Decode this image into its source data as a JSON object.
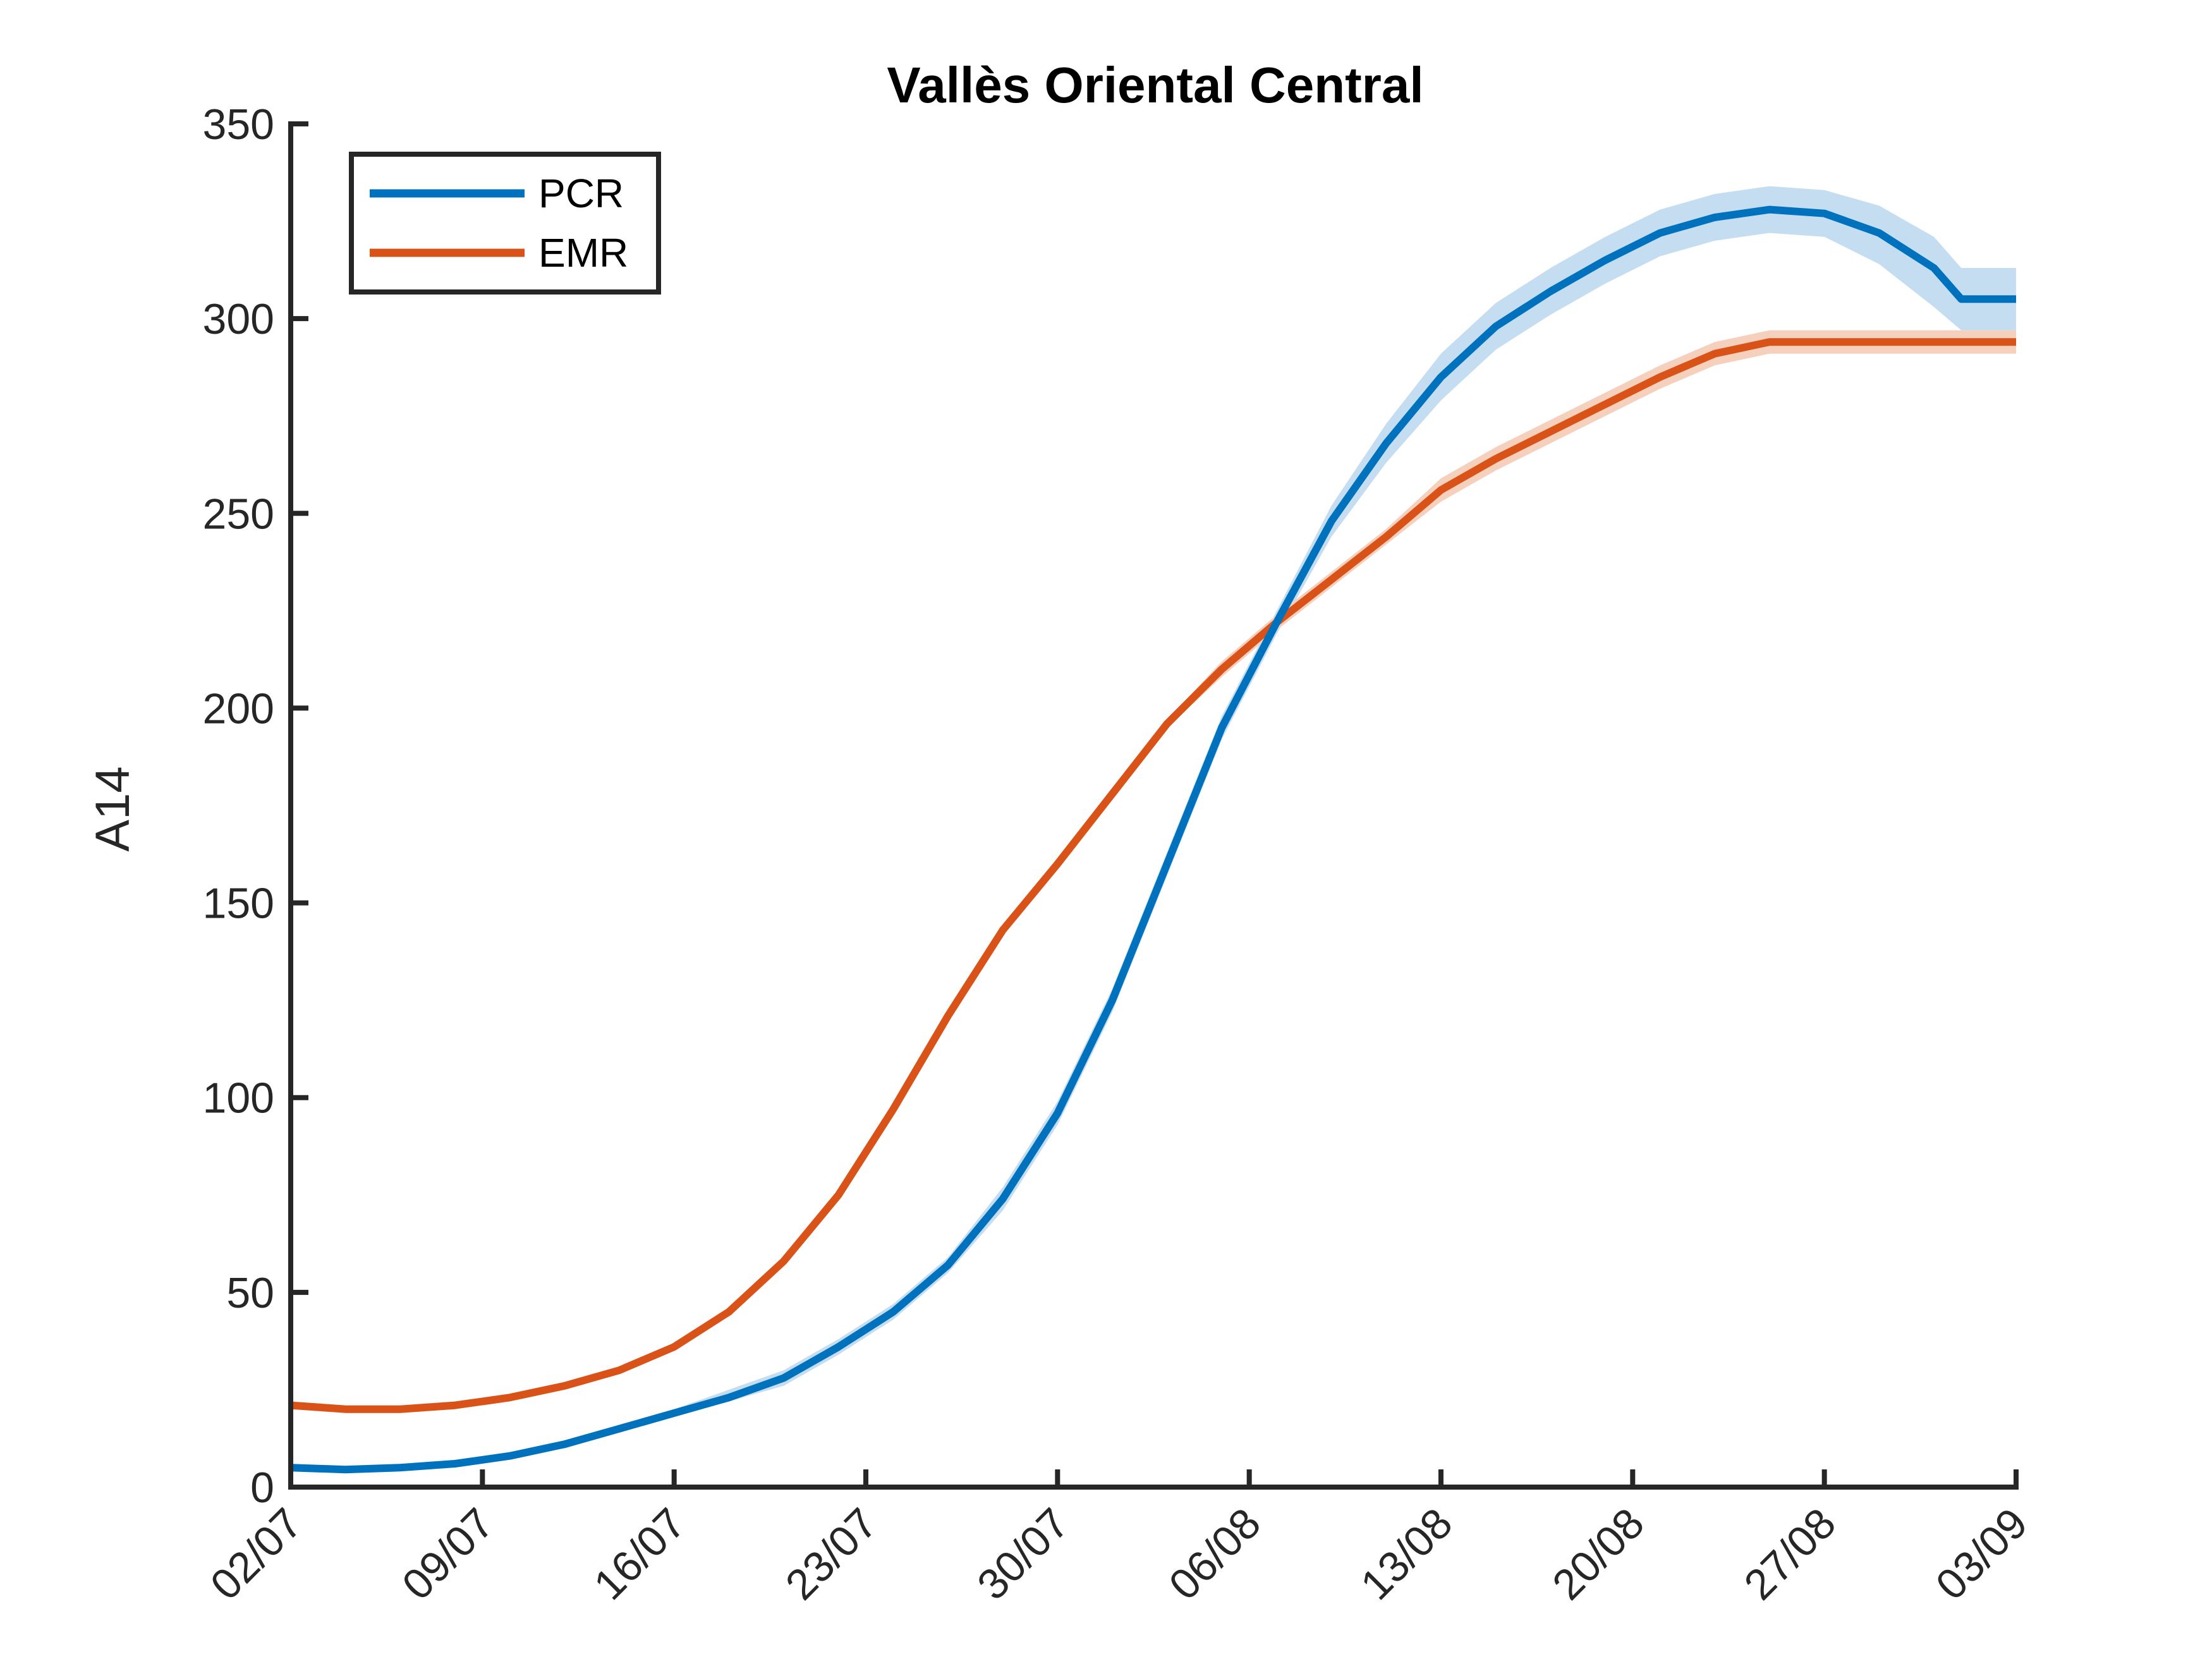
{
  "chart_data": {
    "type": "line",
    "title": "Vallès Oriental Central",
    "xlabel": "",
    "ylabel": "A14",
    "ylim": [
      0,
      350
    ],
    "yticks": [
      0,
      50,
      100,
      150,
      200,
      250,
      300,
      350
    ],
    "xlim": [
      "2020-07-02",
      "2020-09-03"
    ],
    "xtick_labels": [
      "02/07",
      "09/07",
      "16/07",
      "23/07",
      "30/07",
      "06/08",
      "13/08",
      "20/08",
      "27/08",
      "03/09"
    ],
    "x": [
      "2020-07-02",
      "2020-07-04",
      "2020-07-06",
      "2020-07-08",
      "2020-07-10",
      "2020-07-12",
      "2020-07-14",
      "2020-07-16",
      "2020-07-18",
      "2020-07-20",
      "2020-07-22",
      "2020-07-24",
      "2020-07-26",
      "2020-07-28",
      "2020-07-30",
      "2020-08-01",
      "2020-08-03",
      "2020-08-05",
      "2020-08-07",
      "2020-08-09",
      "2020-08-11",
      "2020-08-13",
      "2020-08-15",
      "2020-08-17",
      "2020-08-19",
      "2020-08-21",
      "2020-08-23",
      "2020-08-25",
      "2020-08-27",
      "2020-08-29",
      "2020-08-31",
      "2020-09-01",
      "2020-09-02",
      "2020-09-03"
    ],
    "grid": false,
    "legend": "top-left",
    "series": [
      {
        "name": "PCR",
        "color": "#0072BD",
        "band_color": "#C5DDF0",
        "values": [
          5,
          4.5,
          5,
          6,
          8,
          11,
          15,
          19,
          23,
          28,
          36,
          45,
          57,
          74,
          96,
          125,
          160,
          195,
          222,
          248,
          268,
          285,
          298,
          307,
          315,
          322,
          326,
          328,
          327,
          322,
          313,
          305,
          305,
          305
        ],
        "band": [
          [
            4,
            4,
            4.5,
            5.5,
            7.5,
            10,
            14,
            18,
            22,
            26,
            34,
            43,
            55,
            71,
            93,
            122,
            157,
            192,
            219,
            244,
            263,
            279,
            292,
            301,
            309,
            316,
            320,
            322,
            321,
            314,
            303,
            297,
            297,
            297
          ],
          [
            6,
            5.5,
            6,
            7,
            9,
            12,
            16,
            20,
            25,
            30,
            38,
            47,
            59,
            77,
            99,
            128,
            163,
            198,
            225,
            252,
            273,
            291,
            304,
            313,
            321,
            328,
            332,
            334,
            333,
            329,
            321,
            313,
            313,
            313
          ]
        ]
      },
      {
        "name": "EMR",
        "color": "#D95319",
        "band_color": "#F5D0BD",
        "values": [
          21,
          20,
          20,
          21,
          23,
          26,
          30,
          36,
          45,
          58,
          75,
          97,
          121,
          143,
          160,
          178,
          196,
          210,
          222,
          233,
          244,
          256,
          264,
          271,
          278,
          285,
          291,
          294,
          294,
          294,
          294,
          294,
          294,
          294
        ],
        "band": [
          [
            20,
            19,
            19,
            20,
            22,
            25,
            29,
            35,
            44,
            57,
            74,
            96,
            120,
            142,
            159,
            177,
            195,
            208,
            220,
            231,
            242,
            253,
            261,
            268,
            275,
            282,
            288,
            291,
            291,
            291,
            291,
            291,
            291,
            291
          ],
          [
            22,
            21,
            21,
            22,
            24,
            27,
            31,
            37,
            46,
            59,
            76,
            98,
            122,
            144,
            161,
            179,
            197,
            212,
            224,
            235,
            246,
            259,
            267,
            274,
            281,
            288,
            294,
            297,
            297,
            297,
            297,
            297,
            297,
            297
          ]
        ]
      }
    ]
  }
}
